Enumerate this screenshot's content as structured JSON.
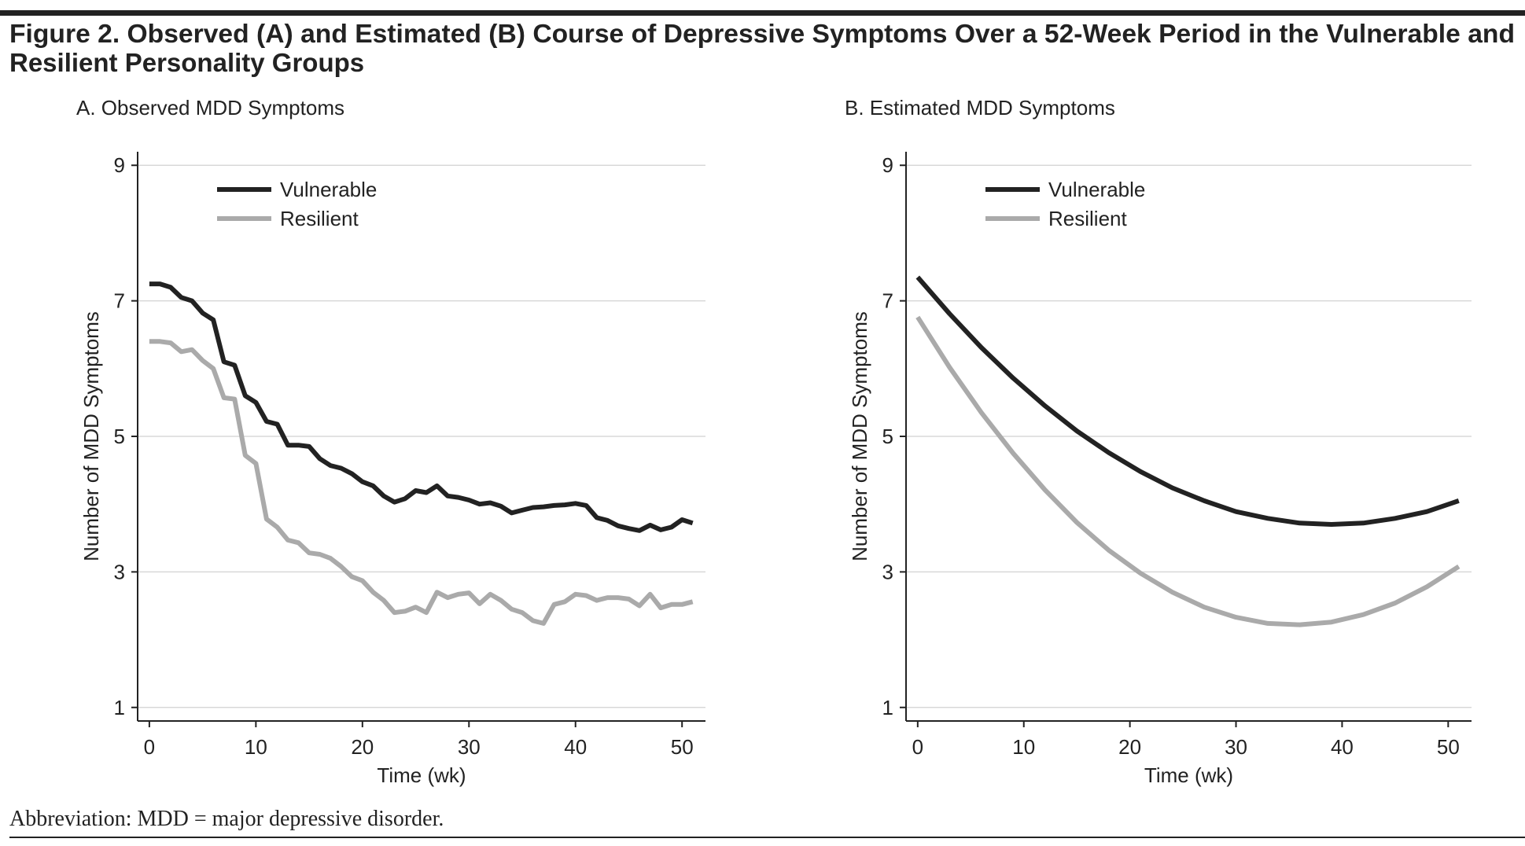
{
  "title_lines": [
    "Figure 2. Observed (A) and Estimated (B) Course of Depressive Symptoms Over a 52-Week Period in the Vulnerable and",
    "Resilient Personality Groups"
  ],
  "footnote": "Abbreviation: MDD = major depressive disorder.",
  "chart_data": [
    {
      "type": "line",
      "title": "A. Observed MDD Symptoms",
      "x_label": "Time (wk)",
      "y_label": "Number of MDD Symptoms",
      "x": [
        0,
        1,
        2,
        3,
        4,
        5,
        6,
        7,
        8,
        9,
        10,
        11,
        12,
        13,
        14,
        15,
        16,
        17,
        18,
        19,
        20,
        21,
        22,
        23,
        24,
        25,
        26,
        27,
        28,
        29,
        30,
        31,
        32,
        33,
        34,
        35,
        36,
        37,
        38,
        39,
        40,
        41,
        42,
        43,
        44,
        45,
        46,
        47,
        48,
        49,
        50,
        51
      ],
      "series": [
        {
          "name": "Vulnerable",
          "color": "#222222",
          "values": [
            7.25,
            7.25,
            7.2,
            7.05,
            7.0,
            6.82,
            6.72,
            6.1,
            6.05,
            5.6,
            5.5,
            5.22,
            5.18,
            4.87,
            4.87,
            4.85,
            4.67,
            4.57,
            4.53,
            4.45,
            4.33,
            4.27,
            4.12,
            4.03,
            4.08,
            4.2,
            4.17,
            4.27,
            4.12,
            4.1,
            4.06,
            4.0,
            4.02,
            3.97,
            3.87,
            3.91,
            3.95,
            3.96,
            3.98,
            3.99,
            4.01,
            3.98,
            3.8,
            3.76,
            3.68,
            3.64,
            3.61,
            3.69,
            3.62,
            3.66,
            3.77,
            3.72
          ]
        },
        {
          "name": "Resilient",
          "color": "#aaaaaa",
          "values": [
            6.4,
            6.4,
            6.38,
            6.25,
            6.28,
            6.12,
            6.0,
            5.57,
            5.55,
            4.72,
            4.6,
            3.78,
            3.66,
            3.47,
            3.43,
            3.28,
            3.26,
            3.2,
            3.08,
            2.93,
            2.87,
            2.7,
            2.58,
            2.4,
            2.42,
            2.48,
            2.4,
            2.7,
            2.62,
            2.67,
            2.69,
            2.53,
            2.67,
            2.58,
            2.45,
            2.4,
            2.28,
            2.24,
            2.52,
            2.56,
            2.67,
            2.65,
            2.58,
            2.62,
            2.62,
            2.6,
            2.5,
            2.67,
            2.47,
            2.52,
            2.52,
            2.56
          ]
        }
      ],
      "xlim": [
        -1.1,
        52.2
      ],
      "xticks": [
        0,
        10,
        20,
        30,
        40,
        50
      ],
      "ylim": [
        0.8,
        9.2
      ],
      "yticks": [
        1,
        3,
        5,
        7,
        9
      ],
      "grid": true,
      "legend": "upper left"
    },
    {
      "type": "line",
      "title": "B. Estimated MDD Symptoms",
      "x_label": "Time (wk)",
      "y_label": "Number of MDD Symptoms",
      "x": [
        0,
        3,
        6,
        9,
        12,
        15,
        18,
        21,
        24,
        27,
        30,
        33,
        36,
        39,
        42,
        45,
        48,
        51
      ],
      "series": [
        {
          "name": "Vulnerable",
          "color": "#222222",
          "values": [
            7.35,
            6.81,
            6.31,
            5.86,
            5.45,
            5.08,
            4.76,
            4.48,
            4.24,
            4.05,
            3.89,
            3.79,
            3.72,
            3.7,
            3.72,
            3.79,
            3.89,
            4.05
          ]
        },
        {
          "name": "Resilient",
          "color": "#aaaaaa",
          "values": [
            6.76,
            6.02,
            5.35,
            4.75,
            4.21,
            3.73,
            3.32,
            2.98,
            2.7,
            2.48,
            2.33,
            2.24,
            2.22,
            2.26,
            2.37,
            2.54,
            2.78,
            3.08
          ]
        }
      ],
      "xlim": [
        -1.1,
        52.2
      ],
      "xticks": [
        0,
        10,
        20,
        30,
        40,
        50
      ],
      "ylim": [
        0.8,
        9.2
      ],
      "yticks": [
        1,
        3,
        5,
        7,
        9
      ],
      "grid": true,
      "legend": "upper left"
    }
  ]
}
